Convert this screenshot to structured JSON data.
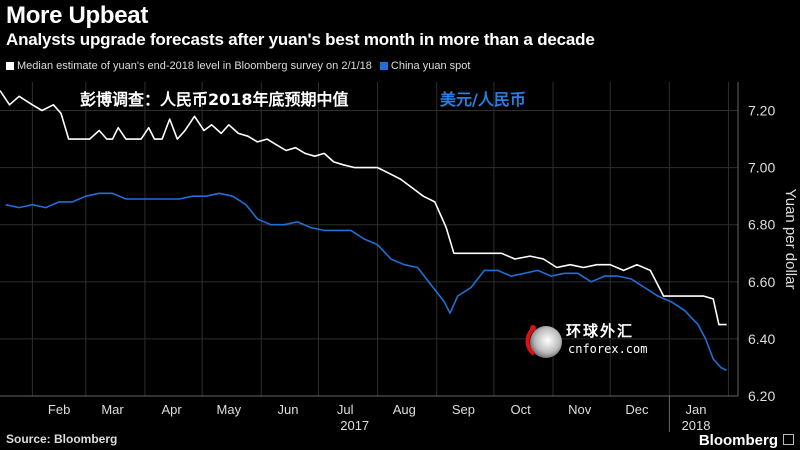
{
  "title": "More Upbeat",
  "subtitle": "Analysts upgrade forecasts after yuan's best month in more than a decade",
  "source": "Source: Bloomberg",
  "brand": "Bloomberg",
  "overlay": {
    "left_label": "彭博调查：人民币2018年底预期中值",
    "right_label": "美元/人民币",
    "watermark_main": "环球外汇",
    "watermark_sub": "cnforex.com"
  },
  "colors": {
    "white_series": "#ffffff",
    "blue_series": "#1f6fd6",
    "background": "#000000",
    "label_blue": "#2a7de1"
  },
  "chart_data": {
    "type": "line",
    "ylabel": "Yuan per dollar",
    "ylim": [
      6.2,
      7.3
    ],
    "ytick_labels": [
      "7.20",
      "7.00",
      "6.80",
      "6.60",
      "6.40",
      "6.20"
    ],
    "ytick_values": [
      7.2,
      7.0,
      6.8,
      6.6,
      6.4,
      6.2
    ],
    "x_ticks": [
      "Feb",
      "Mar",
      "Apr",
      "May",
      "Jun",
      "Jul",
      "Aug",
      "Sep",
      "Oct",
      "Nov",
      "Dec",
      "Jan"
    ],
    "year_labels": [
      "2017",
      "2018"
    ],
    "legend": [
      "Median estimate of yuan's end-2018 level in Bloomberg survey on 2/1/18",
      "China yuan spot"
    ],
    "grid": true,
    "series": [
      {
        "name": "Median estimate of yuan's end-2018 level in Bloomberg survey on 2/1/18",
        "x": [
          "2017-01-15",
          "2017-01-20",
          "2017-01-25",
          "2017-02-01",
          "2017-02-06",
          "2017-02-12",
          "2017-02-16",
          "2017-02-20",
          "2017-02-24",
          "2017-02-28",
          "2017-03-03",
          "2017-03-08",
          "2017-03-12",
          "2017-03-15",
          "2017-03-18",
          "2017-03-22",
          "2017-03-26",
          "2017-03-30",
          "2017-04-03",
          "2017-04-06",
          "2017-04-10",
          "2017-04-14",
          "2017-04-18",
          "2017-04-22",
          "2017-04-27",
          "2017-05-02",
          "2017-05-06",
          "2017-05-11",
          "2017-05-15",
          "2017-05-20",
          "2017-05-25",
          "2017-05-30",
          "2017-06-04",
          "2017-06-09",
          "2017-06-14",
          "2017-06-19",
          "2017-06-24",
          "2017-06-29",
          "2017-07-04",
          "2017-07-09",
          "2017-07-14",
          "2017-07-20",
          "2017-07-26",
          "2017-08-01",
          "2017-08-07",
          "2017-08-13",
          "2017-08-19",
          "2017-08-25",
          "2017-08-31",
          "2017-09-06",
          "2017-09-10",
          "2017-09-15",
          "2017-09-21",
          "2017-09-28",
          "2017-10-05",
          "2017-10-12",
          "2017-10-20",
          "2017-10-27",
          "2017-11-03",
          "2017-11-10",
          "2017-11-17",
          "2017-11-24",
          "2017-12-01",
          "2017-12-08",
          "2017-12-15",
          "2017-12-22",
          "2017-12-29",
          "2018-01-05",
          "2018-01-12",
          "2018-01-19",
          "2018-01-24",
          "2018-01-27",
          "2018-01-31"
        ],
        "values": [
          7.27,
          7.22,
          7.25,
          7.22,
          7.2,
          7.22,
          7.19,
          7.1,
          7.1,
          7.1,
          7.1,
          7.13,
          7.1,
          7.1,
          7.14,
          7.1,
          7.1,
          7.1,
          7.14,
          7.1,
          7.1,
          7.17,
          7.1,
          7.13,
          7.18,
          7.13,
          7.15,
          7.12,
          7.15,
          7.12,
          7.11,
          7.09,
          7.1,
          7.08,
          7.06,
          7.07,
          7.05,
          7.04,
          7.05,
          7.02,
          7.01,
          7.0,
          7.0,
          7.0,
          6.98,
          6.96,
          6.93,
          6.9,
          6.88,
          6.79,
          6.7,
          6.7,
          6.7,
          6.7,
          6.7,
          6.68,
          6.69,
          6.68,
          6.65,
          6.66,
          6.65,
          6.66,
          6.66,
          6.64,
          6.66,
          6.64,
          6.55,
          6.55,
          6.55,
          6.55,
          6.54,
          6.45,
          6.45
        ]
      },
      {
        "name": "China yuan spot",
        "x": [
          "2017-01-18",
          "2017-01-25",
          "2017-02-01",
          "2017-02-08",
          "2017-02-15",
          "2017-02-22",
          "2017-03-01",
          "2017-03-08",
          "2017-03-15",
          "2017-03-22",
          "2017-03-29",
          "2017-04-05",
          "2017-04-12",
          "2017-04-19",
          "2017-04-26",
          "2017-05-03",
          "2017-05-10",
          "2017-05-17",
          "2017-05-24",
          "2017-05-30",
          "2017-06-06",
          "2017-06-13",
          "2017-06-20",
          "2017-06-27",
          "2017-07-04",
          "2017-07-11",
          "2017-07-18",
          "2017-07-25",
          "2017-08-01",
          "2017-08-08",
          "2017-08-15",
          "2017-08-22",
          "2017-08-29",
          "2017-09-05",
          "2017-09-08",
          "2017-09-12",
          "2017-09-19",
          "2017-09-26",
          "2017-10-03",
          "2017-10-10",
          "2017-10-17",
          "2017-10-24",
          "2017-10-31",
          "2017-11-07",
          "2017-11-14",
          "2017-11-21",
          "2017-11-28",
          "2017-12-05",
          "2017-12-12",
          "2017-12-19",
          "2017-12-26",
          "2018-01-02",
          "2018-01-09",
          "2018-01-16",
          "2018-01-20",
          "2018-01-24",
          "2018-01-28",
          "2018-01-31"
        ],
        "values": [
          6.87,
          6.86,
          6.87,
          6.86,
          6.88,
          6.88,
          6.9,
          6.91,
          6.91,
          6.89,
          6.89,
          6.89,
          6.89,
          6.89,
          6.9,
          6.9,
          6.91,
          6.9,
          6.87,
          6.82,
          6.8,
          6.8,
          6.81,
          6.79,
          6.78,
          6.78,
          6.78,
          6.75,
          6.73,
          6.68,
          6.66,
          6.65,
          6.59,
          6.53,
          6.49,
          6.55,
          6.58,
          6.64,
          6.64,
          6.62,
          6.63,
          6.64,
          6.62,
          6.63,
          6.63,
          6.6,
          6.62,
          6.62,
          6.61,
          6.58,
          6.55,
          6.53,
          6.5,
          6.45,
          6.4,
          6.33,
          6.3,
          6.29
        ]
      }
    ]
  }
}
